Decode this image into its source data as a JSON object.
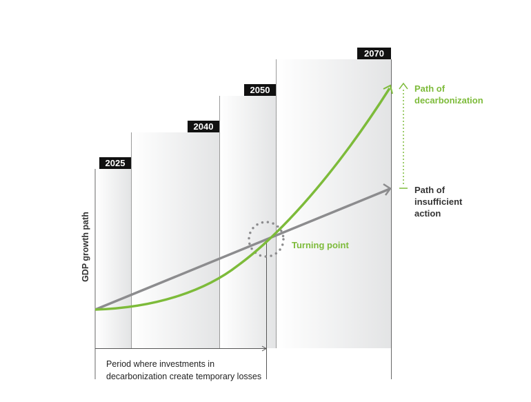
{
  "years": [
    "2025",
    "2040",
    "2050",
    "2070"
  ],
  "path_decarbonization": [
    "Path of",
    "decarbonization"
  ],
  "path_insufficient": [
    "Path of",
    "insufficient",
    "action"
  ],
  "turning_point": "Turning point",
  "y_axis_label": "GDP growth path",
  "period_note": [
    "Period where investments in",
    "decarbonization create temporary losses"
  ],
  "colors": {
    "green": "#7dbb3a",
    "gray": "#8c8c8e",
    "dark": "#111111"
  }
}
